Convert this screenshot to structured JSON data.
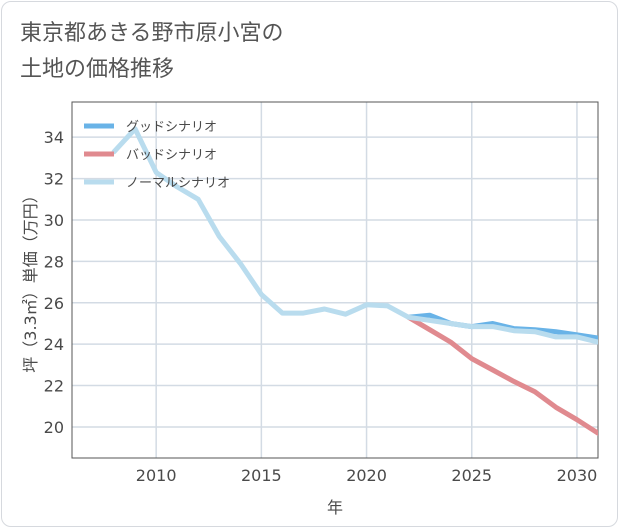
{
  "title_lines": [
    "東京都あきる野市原小宮の",
    "土地の価格推移"
  ],
  "chart_data": {
    "type": "line",
    "xlabel": "年",
    "ylabel": "坪（3.3㎡）単価（万円）",
    "xlim": [
      2006,
      2031
    ],
    "ylim": [
      18.5,
      35.7
    ],
    "xticks": [
      2010,
      2015,
      2020,
      2025,
      2030
    ],
    "yticks": [
      20,
      22,
      24,
      26,
      28,
      30,
      32,
      34
    ],
    "grid": true,
    "legend_position": "top-left",
    "series": [
      {
        "name": "グッドシナリオ",
        "color": "#69b3e7",
        "x": [
          2022,
          2023,
          2024,
          2025,
          2026,
          2027,
          2028,
          2029,
          2030,
          2031
        ],
        "y": [
          25.3,
          25.4,
          25.0,
          24.85,
          25.0,
          24.75,
          24.7,
          24.6,
          24.45,
          24.3
        ]
      },
      {
        "name": "バッドシナリオ",
        "color": "#e08a8f",
        "x": [
          2022,
          2023,
          2024,
          2025,
          2026,
          2027,
          2028,
          2029,
          2030,
          2031
        ],
        "y": [
          25.3,
          24.7,
          24.1,
          23.3,
          22.75,
          22.2,
          21.7,
          20.95,
          20.35,
          19.7
        ]
      },
      {
        "name": "ノーマルシナリオ",
        "color": "#b9dcee",
        "x": [
          2008,
          2009,
          2010,
          2011,
          2012,
          2013,
          2014,
          2015,
          2016,
          2017,
          2018,
          2019,
          2020,
          2021,
          2022,
          2023,
          2024,
          2025,
          2026,
          2027,
          2028,
          2029,
          2030,
          2031
        ],
        "y": [
          33.3,
          34.4,
          32.3,
          31.6,
          31.0,
          29.2,
          27.9,
          26.4,
          25.5,
          25.5,
          25.7,
          25.45,
          25.9,
          25.85,
          25.3,
          25.15,
          25.0,
          24.85,
          24.85,
          24.65,
          24.6,
          24.35,
          24.35,
          24.1
        ]
      }
    ]
  }
}
